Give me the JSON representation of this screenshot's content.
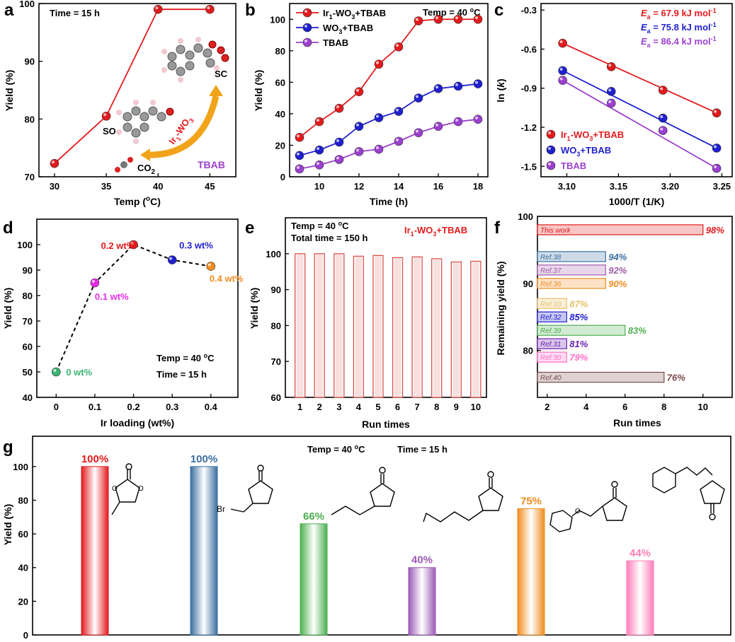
{
  "chart_data": [
    {
      "id": "a",
      "type": "line",
      "panel_label": "a",
      "x": [
        30,
        35,
        40,
        45
      ],
      "values": [
        72.3,
        80.5,
        99.0,
        99.0
      ],
      "xlabel": "Temp (",
      "xlabel_sup": "o",
      "xlabel_end": "C)",
      "ylabel": "Yield (%)",
      "xlim": [
        28.5,
        47.5
      ],
      "ylim": [
        70,
        100
      ],
      "xticks": [
        30,
        35,
        40,
        45
      ],
      "yticks": [
        70,
        80,
        90,
        100
      ],
      "color": "#e31a1c",
      "annotations": {
        "time": "Time = 15 h",
        "so": "SO",
        "sc": "SC",
        "co2": "CO",
        "co2_sub": "2",
        "tbab": "TBAB",
        "catalyst": "Ir",
        "catalyst_sub": "1",
        "catalyst_end": "-WO",
        "catalyst_sub2": "3"
      }
    },
    {
      "id": "b",
      "type": "line",
      "panel_label": "b",
      "x": [
        9,
        10,
        11,
        12,
        13,
        14,
        15,
        16,
        17,
        18
      ],
      "series": [
        {
          "name": "Ir1-WO3+TBAB",
          "color": "#e31a1c",
          "values": [
            25,
            35,
            43.5,
            54,
            71.5,
            82.5,
            99,
            100,
            100,
            100
          ]
        },
        {
          "name": "WO3+TBAB",
          "color": "#1f1fd0",
          "values": [
            13.5,
            17,
            22,
            32,
            37.5,
            41.5,
            50,
            56,
            57.5,
            59
          ]
        },
        {
          "name": "TBAB",
          "color": "#9b3fd0",
          "values": [
            5,
            7.5,
            11,
            16,
            17.5,
            22.5,
            28,
            32,
            35,
            36.5
          ]
        }
      ],
      "legend_labels": [
        {
          "a": "Ir",
          "s1": "1",
          "b": "-WO",
          "s2": "3",
          "c": "+TBAB"
        },
        {
          "a": "WO",
          "s1": "3",
          "b": "+TBAB",
          "s2": "",
          "c": ""
        },
        {
          "a": "TBAB",
          "s1": "",
          "b": "",
          "s2": "",
          "c": ""
        }
      ],
      "xlabel": "Time (h)",
      "ylabel": "Yield (%)",
      "xlim": [
        8.5,
        18.5
      ],
      "ylim": [
        0,
        110
      ],
      "xticks": [
        10,
        12,
        14,
        16,
        18
      ],
      "yticks": [
        0,
        20,
        40,
        60,
        80,
        100
      ],
      "annotation": "Temp = 40 ",
      "annotation_sup": "o",
      "annotation_end": "C"
    },
    {
      "id": "c",
      "type": "scatter",
      "panel_label": "c",
      "x": [
        3.096,
        3.143,
        3.193,
        3.245
      ],
      "series": [
        {
          "name": "Ir1-WO3+TBAB",
          "color": "#e31a1c",
          "values": [
            -0.555,
            -0.735,
            -0.915,
            -1.09
          ],
          "ea": "67.9"
        },
        {
          "name": "WO3+TBAB",
          "color": "#1f1fd0",
          "values": [
            -0.765,
            -0.925,
            -1.13,
            -1.36
          ],
          "ea": "75.8"
        },
        {
          "name": "TBAB",
          "color": "#9b3fd0",
          "values": [
            -0.84,
            -1.015,
            -1.225,
            -1.515
          ],
          "ea": "86.4"
        }
      ],
      "legend_labels": [
        {
          "a": "Ir",
          "s1": "1",
          "b": "-WO",
          "s2": "3",
          "c": "+TBAB"
        },
        {
          "a": "WO",
          "s1": "3",
          "b": "+TBAB",
          "s2": "",
          "c": ""
        },
        {
          "a": "TBAB",
          "s1": "",
          "b": "",
          "s2": "",
          "c": ""
        }
      ],
      "ea_prefix": "E",
      "ea_sub": "a",
      "ea_eq": " = ",
      "ea_unit": " kJ mol",
      "ea_unit_sup": "-1",
      "xlabel": "1000/T (1/K)",
      "ylabel": "ln (",
      "ylabel_italic": "k",
      "ylabel_end": ")",
      "xlim": [
        3.075,
        3.26
      ],
      "ylim": [
        -1.58,
        -0.25
      ],
      "xticks": [
        "3.10",
        "3.15",
        "3.20",
        "3.25"
      ],
      "yticks": [
        "-0.3",
        "-0.6",
        "-0.9",
        "-1.2",
        "-1.5"
      ]
    },
    {
      "id": "d",
      "type": "scatter",
      "panel_label": "d",
      "x": [
        0,
        0.1,
        0.2,
        0.3,
        0.4
      ],
      "values": [
        50,
        85,
        100,
        94,
        91.5
      ],
      "point_labels": [
        "0 wt%",
        "0.1 wt%",
        "0.2 wt%",
        "0.3 wt%",
        "0.4 wt%"
      ],
      "colors": [
        "#3cb371",
        "#e62ce6",
        "#e31a1c",
        "#1f1fd0",
        "#f08c1e"
      ],
      "xlabel": "Ir loading (wt%)",
      "ylabel": "Yield (%)",
      "xlim": [
        -0.05,
        0.47
      ],
      "ylim": [
        40,
        110
      ],
      "xticks": [
        "0",
        "0.1",
        "0.2",
        "0.3",
        "0.4"
      ],
      "yticks": [
        40,
        50,
        60,
        70,
        80,
        90,
        100
      ],
      "annotation1": "Temp = 40 ",
      "annotation1_sup": "o",
      "annotation1_end": "C",
      "annotation2": "Time = 15 h"
    },
    {
      "id": "e",
      "type": "bar",
      "panel_label": "e",
      "categories": [
        "1",
        "2",
        "3",
        "4",
        "5",
        "6",
        "7",
        "8",
        "9",
        "10"
      ],
      "values": [
        100,
        100,
        100,
        99.3,
        99.5,
        98.9,
        99.1,
        98.6,
        97.7,
        97.9
      ],
      "color": "#d9534f",
      "xlabel": "Run times",
      "ylabel": "Yield (%)",
      "ylim": [
        60,
        110
      ],
      "yticks": [
        60,
        70,
        80,
        90,
        100
      ],
      "annotation1": "Temp = 40 ",
      "annotation1_sup": "o",
      "annotation1_end": "C",
      "annotation2": "Total time = 150 h",
      "legend": {
        "a": "Ir",
        "s1": "1",
        "b": "-WO",
        "s2": "3",
        "c": "+TBAB"
      }
    },
    {
      "id": "f",
      "type": "bar",
      "orientation": "horizontal",
      "panel_label": "f",
      "bars": [
        {
          "label": "This work",
          "runs": 10,
          "yield": 98,
          "pct": "98%",
          "color": "#e31a1c"
        },
        {
          "label": "Ref.38",
          "runs": 5,
          "yield": 94,
          "pct": "94%",
          "color": "#3a6fa0"
        },
        {
          "label": "Ref.37",
          "runs": 5,
          "yield": 92,
          "pct": "92%",
          "color": "#a05ca8"
        },
        {
          "label": "Ref.36",
          "runs": 5,
          "yield": 90,
          "pct": "90%",
          "color": "#f08c1e"
        },
        {
          "label": "Ref.33",
          "runs": 3,
          "yield": 87,
          "pct": "87%",
          "color": "#e8c16a"
        },
        {
          "label": "Ref.32",
          "runs": 3,
          "yield": 85,
          "pct": "85%",
          "color": "#1f1fd0"
        },
        {
          "label": "Ref.39",
          "runs": 6,
          "yield": 83,
          "pct": "83%",
          "color": "#4caf50"
        },
        {
          "label": "Ref.31",
          "runs": 3,
          "yield": 81,
          "pct": "81%",
          "color": "#6a1fb0"
        },
        {
          "label": "Ref.30",
          "runs": 3,
          "yield": 79,
          "pct": "79%",
          "color": "#ff6ec7"
        },
        {
          "label": "Ref.40",
          "runs": 8,
          "yield": 76,
          "pct": "76%",
          "color": "#7a4a4a"
        }
      ],
      "xlabel": "Run times",
      "ylabel": "Remaining yield (%)",
      "xlim": [
        1.5,
        11.5
      ],
      "ylim": [
        73,
        100
      ],
      "xticks": [
        2,
        4,
        6,
        8,
        10
      ],
      "yticks": [
        80,
        90,
        100
      ]
    },
    {
      "id": "g",
      "type": "bar",
      "panel_label": "g",
      "values": [
        100,
        100,
        66,
        40,
        75,
        44
      ],
      "labels": [
        "100%",
        "100%",
        "66%",
        "40%",
        "75%",
        "44%"
      ],
      "colors": [
        "#e31a1c",
        "#3a6fa0",
        "#4caf50",
        "#9b59b6",
        "#f08c1e",
        "#ff7eb9"
      ],
      "ylabel": "Yield (%)",
      "ylim": [
        0,
        118
      ],
      "yticks": [
        0,
        20,
        40,
        60,
        80,
        100
      ],
      "annotation": "Temp = 40 ",
      "annotation_sup": "o",
      "annotation_end": "C",
      "annotation2": "Time = 15 h",
      "structures": {
        "br": "Br",
        "o": "O"
      }
    }
  ]
}
